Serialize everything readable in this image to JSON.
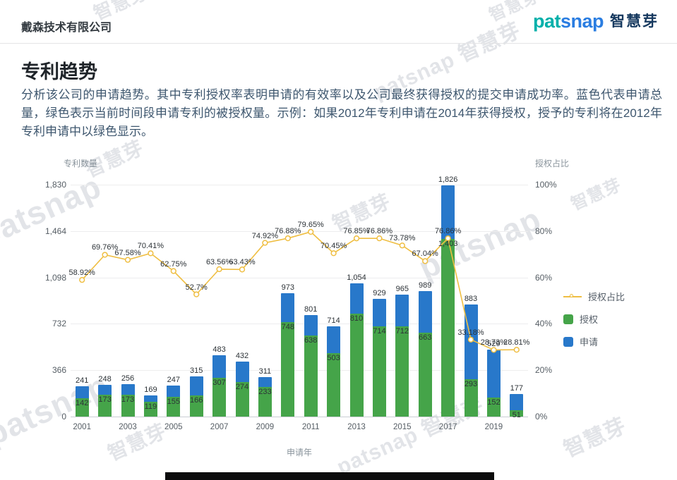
{
  "header": {
    "company": "戴森技术有限公司",
    "logo": {
      "en_part1": "pat",
      "en_part2": "snap",
      "cn": "智慧芽"
    }
  },
  "page": {
    "title": "专利趋势",
    "description": "分析该公司的申请趋势。其中专利授权率表明申请的有效率以及公司最终获得授权的提交申请成功率。蓝色代表申请总量，绿色表示当前时间段申请专利的被授权量。示例：如果2012年专利申请在2014年获得授权，授予的专利将在2012年专利申请中以绿色显示。"
  },
  "watermark": {
    "en": "patsnap",
    "cn": "智慧芽",
    "full": "patsnap 智慧芽"
  },
  "chart_data": {
    "type": "bar+line",
    "x": [
      2001,
      2002,
      2003,
      2004,
      2005,
      2006,
      2007,
      2008,
      2009,
      2010,
      2011,
      2012,
      2013,
      2014,
      2015,
      2016,
      2017,
      2018,
      2019,
      2020
    ],
    "series": [
      {
        "name": "申请",
        "type": "bar",
        "color": "#2878ca",
        "values": [
          241,
          248,
          256,
          169,
          247,
          315,
          483,
          432,
          311,
          973,
          801,
          714,
          1054,
          929,
          965,
          989,
          1826,
          883,
          529,
          177
        ]
      },
      {
        "name": "授权",
        "type": "bar",
        "color": "#45a449",
        "values": [
          142,
          173,
          173,
          119,
          155,
          166,
          307,
          274,
          233,
          748,
          638,
          503,
          810,
          714,
          712,
          663,
          1403,
          293,
          152,
          51
        ]
      },
      {
        "name": "授权占比",
        "type": "line",
        "color": "#efbe42",
        "values": [
          58.92,
          69.76,
          67.58,
          70.41,
          62.75,
          52.7,
          63.56,
          63.43,
          74.92,
          76.88,
          79.65,
          70.45,
          76.85,
          76.86,
          73.78,
          67.04,
          76.86,
          33.18,
          28.73,
          28.81
        ],
        "labels": [
          "58.92%",
          "69.76%",
          "67.58%",
          "70.41%",
          "62.75%",
          "52.7%",
          "63.56%",
          "63.43%",
          "74.92%",
          "76.88%",
          "79.65%",
          "70.45%",
          "76.85%",
          "76.86%",
          "73.78%",
          "67.04%",
          "76.86%",
          "33.18%",
          "28.73%",
          "28.81%"
        ]
      }
    ],
    "left_axis": {
      "title": "专利数量",
      "max": 1830,
      "ticks": [
        "0",
        "366",
        "732",
        "1,098",
        "1,464",
        "1,830"
      ]
    },
    "right_axis": {
      "title": "授权占比",
      "max": 100,
      "ticks": [
        "0%",
        "20%",
        "40%",
        "60%",
        "80%",
        "100%"
      ]
    },
    "x_axis": {
      "title": "申请年",
      "tick_labels": [
        "2001",
        "2003",
        "2005",
        "2007",
        "2009",
        "2011",
        "2013",
        "2015",
        "2017",
        "2019"
      ]
    },
    "legend": {
      "ratio": "授权占比",
      "granted": "授权",
      "applications": "申请"
    },
    "grid": true,
    "legend_position": "right"
  }
}
